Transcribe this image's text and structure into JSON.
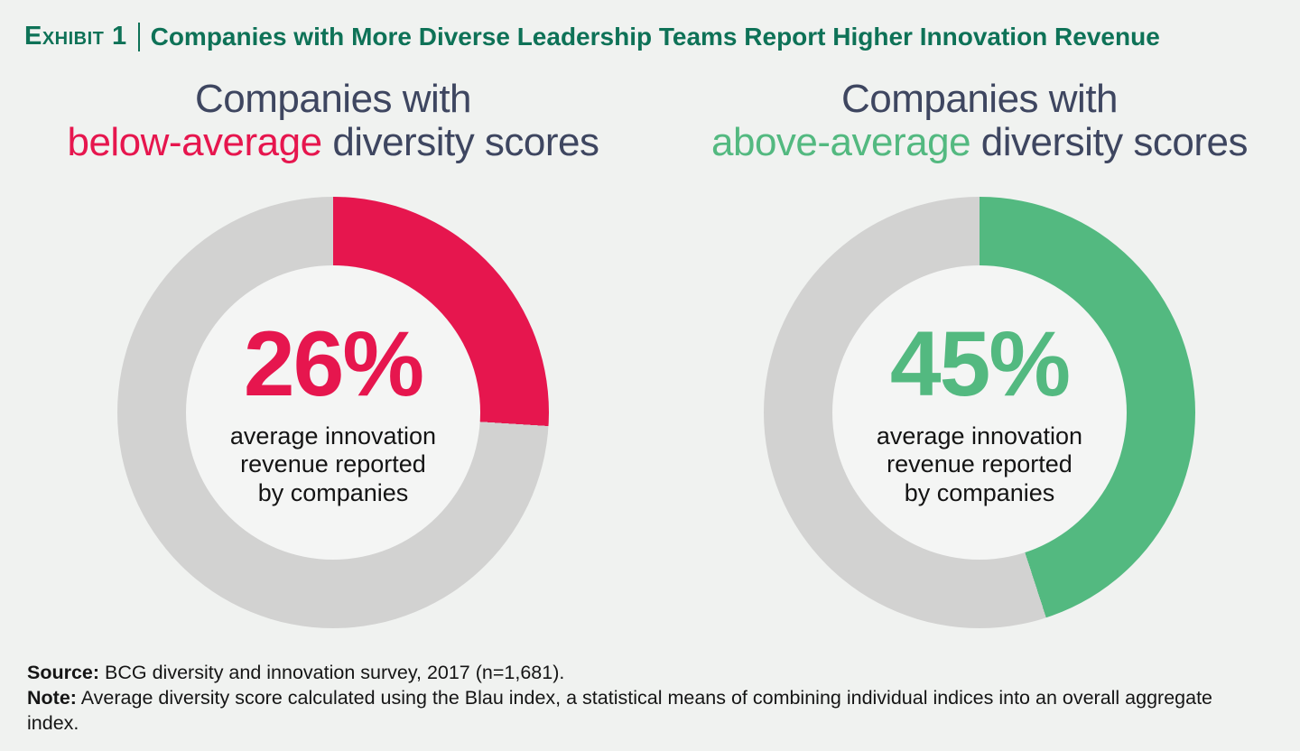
{
  "page": {
    "background_color": "#f0f2f0"
  },
  "header": {
    "exhibit_label": "Exhibit 1",
    "title": "Companies with More Diverse Leadership Teams Report Higher Innovation Revenue",
    "color": "#0e7257"
  },
  "chart_data": [
    {
      "type": "pie",
      "subtype": "donut",
      "heading_line1": "Companies with",
      "heading_highlight": "below-average",
      "heading_rest": "diversity scores",
      "value": 26,
      "remainder": 74,
      "value_label": "26%",
      "caption_lines": [
        "average innovation",
        "revenue reported",
        "by companies"
      ],
      "caption_text": "average innovation revenue reported by companies",
      "color": "#e6164e",
      "track_color": "#d2d2d1",
      "start_angle_deg": 0,
      "direction": "clockwise",
      "legend": "off"
    },
    {
      "type": "pie",
      "subtype": "donut",
      "heading_line1": "Companies with",
      "heading_highlight": "above-average",
      "heading_rest": "diversity scores",
      "value": 45,
      "remainder": 55,
      "value_label": "45%",
      "caption_lines": [
        "average innovation",
        "revenue reported",
        "by companies"
      ],
      "caption_text": "average innovation revenue reported by companies",
      "color": "#53b980",
      "track_color": "#d2d2d1",
      "start_angle_deg": 0,
      "direction": "clockwise",
      "legend": "off"
    }
  ],
  "footer": {
    "source_label": "Source:",
    "source_text": " BCG diversity and innovation survey, 2017 (n=1,681).",
    "note_label": "Note:",
    "note_text": " Average diversity score calculated using the Blau index, a statistical means of combining individual indices into an overall aggregate index."
  }
}
